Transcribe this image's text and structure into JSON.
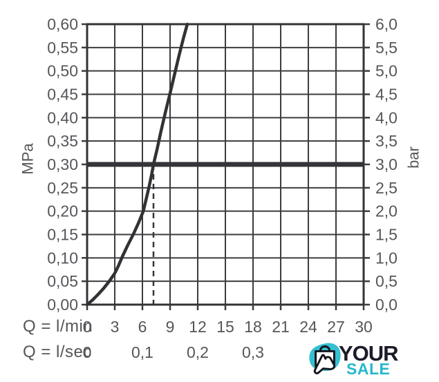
{
  "colors": {
    "grid_line": "#3c3c3f",
    "plot_border": "#333336",
    "curve": "#323236",
    "reference_line": "#353539",
    "dashed_line": "#353539",
    "axis_text": "#55565a",
    "logo_dark": "#1b1b29",
    "logo_teal": "#2bb8cc"
  },
  "chart_data": {
    "type": "line",
    "title": "",
    "grid": true,
    "x": {
      "unit_lmin": "Q = l/min",
      "unit_lsec": "Q = l/sec",
      "min": 0,
      "max": 30,
      "step": 3,
      "tick_labels_lmin": [
        "0",
        "3",
        "6",
        "9",
        "12",
        "15",
        "18",
        "21",
        "24",
        "27",
        "30"
      ],
      "tick_labels_lsec": [
        {
          "at_lmin": 0,
          "label": "0"
        },
        {
          "at_lmin": 6,
          "label": "0,1"
        },
        {
          "at_lmin": 12,
          "label": "0,2"
        },
        {
          "at_lmin": 18,
          "label": "0,3"
        }
      ]
    },
    "y_left": {
      "unit": "MPa",
      "min": 0,
      "max": 0.6,
      "step": 0.05,
      "tick_labels": [
        "0,60",
        "0,55",
        "0,50",
        "0,45",
        "0,40",
        "0,35",
        "0,30",
        "0,25",
        "0,20",
        "0,15",
        "0,10",
        "0,05",
        "0,00"
      ]
    },
    "y_right": {
      "unit": "bar",
      "min": 0,
      "max": 6,
      "step": 0.5,
      "tick_labels": [
        "6,0",
        "5,5",
        "5,0",
        "4,5",
        "4,0",
        "3,5",
        "3,0",
        "2,5",
        "2,0",
        "1,5",
        "1,0",
        "0,5",
        "0,0"
      ]
    },
    "series": [
      {
        "name": "flow-pressure-curve",
        "points_lmin_mpa": [
          [
            0,
            0.0
          ],
          [
            0.6,
            0.01
          ],
          [
            1.2,
            0.022
          ],
          [
            1.8,
            0.035
          ],
          [
            2.4,
            0.05
          ],
          [
            3.0,
            0.067
          ],
          [
            3.4,
            0.083
          ],
          [
            3.8,
            0.102
          ],
          [
            4.4,
            0.127
          ],
          [
            5.0,
            0.15
          ],
          [
            5.6,
            0.176
          ],
          [
            6.1,
            0.2
          ],
          [
            6.7,
            0.25
          ],
          [
            7.0,
            0.278
          ],
          [
            7.2,
            0.3
          ],
          [
            7.6,
            0.333
          ],
          [
            8.0,
            0.37
          ],
          [
            8.5,
            0.412
          ],
          [
            9.0,
            0.452
          ],
          [
            9.5,
            0.494
          ],
          [
            10.0,
            0.535
          ],
          [
            10.45,
            0.57
          ],
          [
            10.87,
            0.6
          ]
        ]
      }
    ],
    "reference_line_mpa": 0.3,
    "reference_line_bar": 3.0,
    "dashed_line_at_lmin": 7.2
  },
  "logo": {
    "line1": "YOUR",
    "line2": "SALE"
  }
}
